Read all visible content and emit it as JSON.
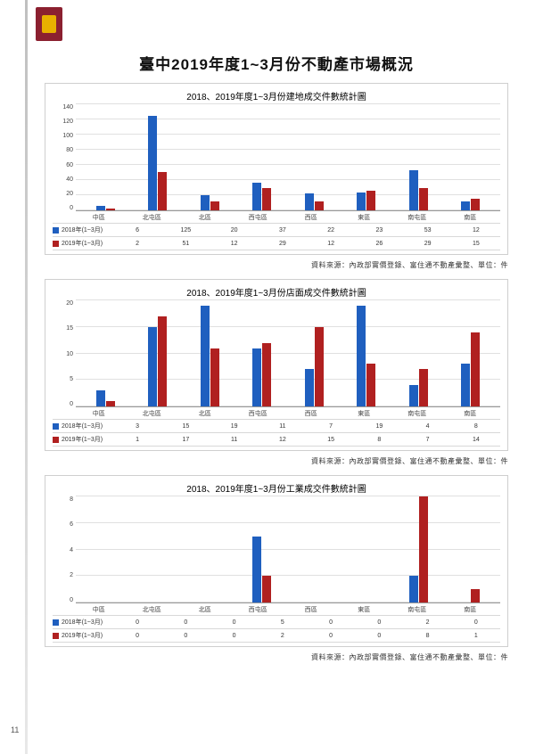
{
  "page_title": "臺中2019年度1~3月份不動產市場概況",
  "page_number": "11",
  "source_text": "資料來源：內政部實價登錄、富住通不動產彙整、單位：件",
  "legend": {
    "series1": "2018年(1~3月)",
    "series2": "2019年(1~3月)"
  },
  "colors": {
    "series1": "#1f5fbf",
    "series2": "#b02020",
    "grid": "#e0e0e0",
    "border": "#cfcfcf",
    "bg": "#ffffff"
  },
  "categories": [
    "中區",
    "北屯區",
    "北區",
    "西屯區",
    "西區",
    "東區",
    "南屯區",
    "南區"
  ],
  "charts": [
    {
      "title": "2018、2019年度1~3月份建地成交件數統計圖",
      "type": "bar",
      "ylim": [
        0,
        140
      ],
      "ytick_step": 20,
      "series1": [
        6,
        125,
        20,
        37,
        22,
        23,
        53,
        12
      ],
      "series2": [
        2,
        51,
        12,
        29,
        12,
        26,
        29,
        15
      ]
    },
    {
      "title": "2018、2019年度1~3月份店面成交件數統計圖",
      "type": "bar",
      "ylim": [
        0,
        20
      ],
      "ytick_step": 5,
      "series1": [
        3,
        15,
        19,
        11,
        7,
        19,
        4,
        8
      ],
      "series2": [
        1,
        17,
        11,
        12,
        15,
        8,
        7,
        14
      ]
    },
    {
      "title": "2018、2019年度1~3月份工業成交件數統計圖",
      "type": "bar",
      "ylim": [
        0,
        8
      ],
      "ytick_step": 2,
      "series1": [
        0,
        0,
        0,
        5,
        0,
        0,
        2,
        0
      ],
      "series2": [
        0,
        0,
        0,
        2,
        0,
        0,
        8,
        1
      ]
    }
  ]
}
